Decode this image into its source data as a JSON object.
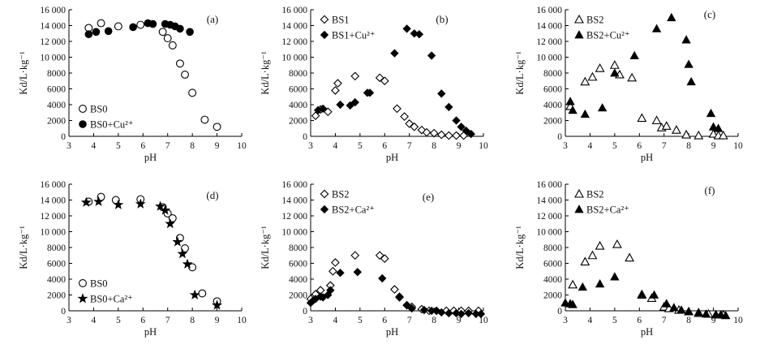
{
  "chart_data": [
    {
      "type": "scatter",
      "panel_label": "(a)",
      "xlabel": "pH",
      "ylabel": "Kd/L·kg⁻¹",
      "xlim": [
        3,
        10
      ],
      "ylim": [
        0,
        16000
      ],
      "xticks": [
        "3",
        "4",
        "5",
        "6",
        "7",
        "8",
        "9",
        "10"
      ],
      "yticks": [
        "0",
        "2000",
        "4000",
        "6000",
        "8000",
        "10 000",
        "12 000",
        "14 000",
        "16 000"
      ],
      "legend_position": "bottom-left",
      "series": [
        {
          "name": "BS0",
          "marker": "circle-open",
          "x": [
            3.8,
            4.3,
            5.0,
            5.9,
            6.8,
            7.0,
            7.2,
            7.5,
            7.7,
            8.0,
            8.5,
            9.0
          ],
          "y": [
            13700,
            14300,
            13900,
            14100,
            13200,
            12400,
            11500,
            9200,
            7800,
            5500,
            2100,
            1200
          ]
        },
        {
          "name": "BS0+Cu²⁺",
          "marker": "circle-filled",
          "x": [
            3.8,
            4.1,
            4.6,
            5.6,
            6.2,
            6.4,
            6.9,
            7.1,
            7.3,
            7.5,
            7.9
          ],
          "y": [
            12900,
            13200,
            13300,
            13800,
            14300,
            14200,
            14200,
            14100,
            13900,
            13600,
            13200
          ]
        }
      ]
    },
    {
      "type": "scatter",
      "panel_label": "(b)",
      "xlabel": "pH",
      "ylabel": "Kd/L·kg⁻¹",
      "xlim": [
        3,
        10
      ],
      "ylim": [
        0,
        16000
      ],
      "xticks": [
        "3",
        "4",
        "5",
        "6",
        "7",
        "8",
        "9",
        "10"
      ],
      "yticks": [
        "0",
        "2000",
        "4000",
        "6000",
        "8000",
        "10 000",
        "12 000",
        "14 000",
        "16 000"
      ],
      "legend_position": "top-left",
      "series": [
        {
          "name": "BS1",
          "marker": "diamond-open",
          "x": [
            3.2,
            3.4,
            3.7,
            4.0,
            4.1,
            4.8,
            5.8,
            6.0,
            6.5,
            6.8,
            7.0,
            7.2,
            7.5,
            7.7,
            8.0,
            8.3,
            8.6,
            8.9,
            9.2
          ],
          "y": [
            2600,
            3400,
            3100,
            5800,
            6700,
            7600,
            7400,
            7000,
            3500,
            2500,
            1600,
            1200,
            800,
            500,
            400,
            200,
            100,
            100,
            100
          ]
        },
        {
          "name": "BS1+Cu²⁺",
          "marker": "diamond-filled",
          "x": [
            3.3,
            3.5,
            4.2,
            4.6,
            4.8,
            5.3,
            5.4,
            6.4,
            6.9,
            7.2,
            7.4,
            7.9,
            8.3,
            8.6,
            8.9,
            9.1,
            9.3,
            9.5
          ],
          "y": [
            3300,
            3500,
            4000,
            3900,
            4300,
            5500,
            5500,
            10500,
            13600,
            13000,
            12900,
            10200,
            5400,
            3700,
            2000,
            1200,
            700,
            300
          ]
        }
      ]
    },
    {
      "type": "scatter",
      "panel_label": "(c)",
      "xlabel": "pH",
      "ylabel": "Kd/L·kg⁻¹",
      "xlim": [
        3,
        10
      ],
      "ylim": [
        0,
        16000
      ],
      "xticks": [
        "3",
        "4",
        "5",
        "6",
        "7",
        "8",
        "9",
        "10"
      ],
      "yticks": [
        "0",
        "2000",
        "4000",
        "6000",
        "8000",
        "10 000",
        "12 000",
        "14 000",
        "16 000"
      ],
      "legend_position": "top-left",
      "series": [
        {
          "name": "BS2",
          "marker": "triangle-open",
          "x": [
            3.2,
            3.8,
            4.1,
            4.4,
            5.0,
            5.2,
            5.7,
            6.1,
            6.7,
            6.9,
            7.1,
            7.5,
            7.9,
            8.4,
            9.0,
            9.2,
            9.4
          ],
          "y": [
            3800,
            6900,
            7500,
            8600,
            9000,
            7800,
            7400,
            2300,
            2000,
            1100,
            1300,
            800,
            200,
            100,
            300,
            100,
            100
          ]
        },
        {
          "name": "BS2+Cu²⁺",
          "marker": "triangle-filled",
          "x": [
            3.2,
            3.3,
            3.8,
            4.5,
            5.0,
            5.8,
            6.7,
            7.3,
            7.9,
            8.0,
            8.1,
            8.9,
            9.0,
            9.2
          ],
          "y": [
            4400,
            3300,
            2800,
            3600,
            8000,
            10200,
            13600,
            15000,
            12200,
            9100,
            6900,
            2900,
            1200,
            1000
          ]
        }
      ]
    },
    {
      "type": "scatter",
      "panel_label": "(d)",
      "xlabel": "pH",
      "ylabel": "Kd/L·kg⁻¹",
      "xlim": [
        3,
        10
      ],
      "ylim": [
        0,
        16000
      ],
      "xticks": [
        "3",
        "4",
        "5",
        "6",
        "7",
        "8",
        "9",
        "10"
      ],
      "yticks": [
        "0",
        "2000",
        "4000",
        "6000",
        "8000",
        "10 000",
        "12 000",
        "14 000",
        "16 000"
      ],
      "legend_position": "bottom-left",
      "series": [
        {
          "name": "BS0",
          "marker": "circle-open",
          "x": [
            3.8,
            4.3,
            4.9,
            5.9,
            6.8,
            7.0,
            7.2,
            7.5,
            7.7,
            8.0,
            8.4,
            9.0
          ],
          "y": [
            13800,
            14400,
            14000,
            14100,
            13100,
            12300,
            11700,
            9200,
            7900,
            5500,
            2200,
            1200
          ]
        },
        {
          "name": "BS0+Ca²⁺",
          "marker": "star-filled",
          "x": [
            3.7,
            4.2,
            5.0,
            5.9,
            6.7,
            6.9,
            7.1,
            7.4,
            7.6,
            7.8,
            8.1,
            9.0
          ],
          "y": [
            13700,
            13800,
            13400,
            13500,
            13200,
            12700,
            11000,
            8700,
            7200,
            5900,
            2000,
            700
          ]
        }
      ]
    },
    {
      "type": "scatter",
      "panel_label": "(e)",
      "xlabel": "pH",
      "ylabel": "Kd/L·kg⁻¹",
      "xlim": [
        3,
        10
      ],
      "ylim": [
        0,
        16000
      ],
      "xticks": [
        "3",
        "4",
        "5",
        "6",
        "7",
        "8",
        "9",
        "10"
      ],
      "yticks": [
        "0",
        "2000",
        "4000",
        "6000",
        "8000",
        "10 000",
        "12 000",
        "14 000",
        "16 000"
      ],
      "legend_position": "top-left",
      "series": [
        {
          "name": "BS2",
          "marker": "diamond-open",
          "x": [
            3.0,
            3.2,
            3.4,
            3.8,
            3.9,
            4.0,
            4.8,
            5.8,
            6.0,
            6.4,
            6.6,
            6.9,
            7.1,
            7.5,
            7.8,
            8.1,
            8.5,
            8.8,
            9.1,
            9.4,
            9.8
          ],
          "y": [
            1500,
            2100,
            2600,
            3200,
            5000,
            6100,
            7000,
            7000,
            6600,
            2700,
            1700,
            700,
            500,
            200,
            0,
            0,
            0,
            0,
            0,
            0,
            0
          ]
        },
        {
          "name": "BS2+Ca²⁺",
          "marker": "diamond-filled",
          "x": [
            3.0,
            3.1,
            3.2,
            3.4,
            3.5,
            3.7,
            3.8,
            4.2,
            4.9,
            5.9,
            6.6,
            6.9,
            7.1,
            7.6,
            7.9,
            8.1,
            8.3,
            8.6,
            8.9,
            9.1,
            9.4,
            9.7,
            9.9
          ],
          "y": [
            1000,
            1300,
            1500,
            1800,
            1700,
            2000,
            2600,
            4800,
            4900,
            4100,
            1800,
            700,
            300,
            100,
            0,
            0,
            -200,
            -300,
            -300,
            -400,
            -300,
            -400,
            -400
          ]
        }
      ]
    },
    {
      "type": "scatter",
      "panel_label": "(f)",
      "xlabel": "pH",
      "ylabel": "Kd/L·kg⁻¹",
      "xlim": [
        3,
        10
      ],
      "ylim": [
        0,
        16000
      ],
      "xticks": [
        "3",
        "4",
        "5",
        "6",
        "7",
        "8",
        "9",
        "10"
      ],
      "yticks": [
        "0",
        "2000",
        "4000",
        "6000",
        "8000",
        "10 000",
        "12 000",
        "14 000",
        "16 000"
      ],
      "legend_position": "top-left",
      "series": [
        {
          "name": "BS2",
          "marker": "triangle-open",
          "x": [
            3.3,
            3.8,
            4.1,
            4.4,
            5.1,
            5.6,
            6.1,
            6.5,
            7.0,
            7.2,
            7.6,
            8.0,
            8.4,
            8.8,
            9.1,
            9.4
          ],
          "y": [
            3300,
            6200,
            7000,
            8200,
            8400,
            6700,
            2000,
            1600,
            500,
            300,
            100,
            -100,
            -300,
            -400,
            -500,
            -500
          ]
        },
        {
          "name": "BS2+Ca²⁺",
          "marker": "triangle-filled",
          "x": [
            3.0,
            3.2,
            3.3,
            3.7,
            4.4,
            5.0,
            6.1,
            6.6,
            7.1,
            7.4,
            7.7,
            8.0,
            8.4,
            8.7,
            9.1,
            9.3,
            9.5
          ],
          "y": [
            1000,
            900,
            800,
            3000,
            3400,
            4300,
            2100,
            2000,
            900,
            400,
            100,
            -100,
            -200,
            -400,
            -500,
            -500,
            -600
          ]
        }
      ]
    }
  ]
}
